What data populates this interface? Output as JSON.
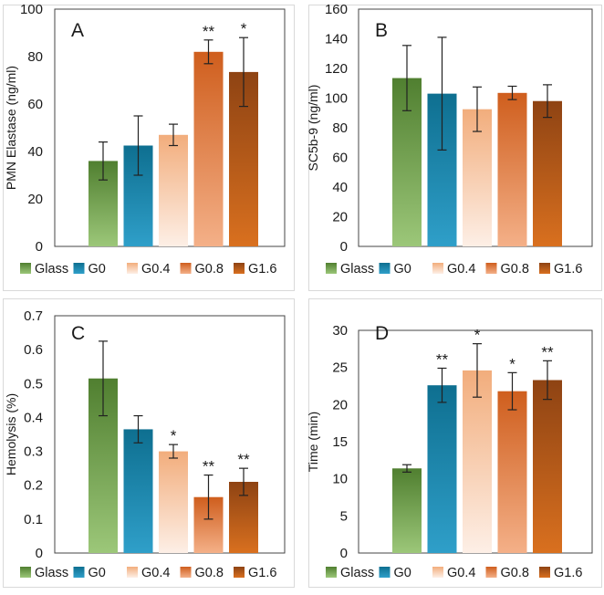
{
  "colors": {
    "Glass": [
      "#9cc779",
      "#507f30"
    ],
    "G0": [
      "#2f9fc9",
      "#0e6f90"
    ],
    "G0.4": [
      "#fdefe6",
      "#f2ad7c"
    ],
    "G0.8": [
      "#f4b088",
      "#cf5e1d"
    ],
    "G1.6": [
      "#d9701f",
      "#8e4313"
    ],
    "axis": "#444444",
    "error_bar": "#222222"
  },
  "legend": [
    "Glass",
    "G0",
    "G0.4",
    "G0.8",
    "G1.6"
  ],
  "chart_data": [
    {
      "id": "A",
      "type": "bar",
      "panel_label": "A",
      "ylabel": "PMN Elastase (ng/ml)",
      "xlabel": "",
      "ylim": [
        0,
        100
      ],
      "yticks": [
        0,
        20,
        40,
        60,
        80,
        100
      ],
      "categories": [
        "Glass",
        "G0",
        "G0.4",
        "G0.8",
        "G1.6"
      ],
      "values": [
        36,
        42.5,
        47,
        82,
        73.5
      ],
      "errors": [
        8,
        12.5,
        4.5,
        5,
        14.5
      ],
      "significance": [
        "",
        "",
        "",
        "**",
        "*"
      ]
    },
    {
      "id": "B",
      "type": "bar",
      "panel_label": "B",
      "ylabel": "SC5b-9 (ng/ml)",
      "xlabel": "",
      "ylim": [
        0,
        160
      ],
      "yticks": [
        0,
        20,
        40,
        60,
        80,
        100,
        120,
        140,
        160
      ],
      "categories": [
        "Glass",
        "G0",
        "G0.4",
        "G0.8",
        "G1.6"
      ],
      "values": [
        113.5,
        103,
        92.5,
        103.5,
        98
      ],
      "errors": [
        22,
        38,
        15,
        4.5,
        11
      ],
      "significance": [
        "",
        "",
        "",
        "",
        ""
      ]
    },
    {
      "id": "C",
      "type": "bar",
      "panel_label": "C",
      "ylabel": "Hemolysis (%)",
      "xlabel": "",
      "ylim": [
        0,
        0.7
      ],
      "yticks": [
        0,
        0.1,
        0.2,
        0.3,
        0.4,
        0.5,
        0.6,
        0.7
      ],
      "categories": [
        "Glass",
        "G0",
        "G0.4",
        "G0.8",
        "G1.6"
      ],
      "values": [
        0.515,
        0.365,
        0.3,
        0.165,
        0.21
      ],
      "errors": [
        0.11,
        0.04,
        0.02,
        0.065,
        0.04
      ],
      "significance": [
        "",
        "",
        "*",
        "**",
        "**"
      ]
    },
    {
      "id": "D",
      "type": "bar",
      "panel_label": "D",
      "ylabel": "Time (min)",
      "xlabel": "",
      "ylim": [
        0,
        30
      ],
      "yticks": [
        0,
        5,
        10,
        15,
        20,
        25,
        30
      ],
      "categories": [
        "Glass",
        "G0",
        "G0.4",
        "G0.8",
        "G1.6"
      ],
      "values": [
        11.4,
        22.6,
        24.6,
        21.8,
        23.3
      ],
      "errors": [
        0.5,
        2.3,
        3.6,
        2.5,
        2.6
      ],
      "significance": [
        "",
        "**",
        "*",
        "*",
        "**"
      ]
    }
  ]
}
